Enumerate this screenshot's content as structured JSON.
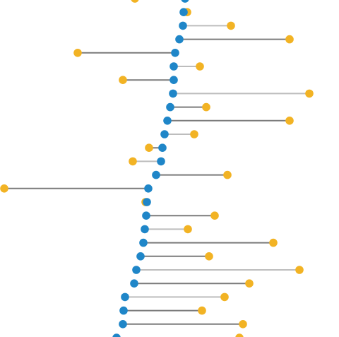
{
  "chart_data": {
    "type": "dumbbell",
    "title": "",
    "xlabel": "",
    "ylabel": "",
    "grid": false,
    "legend": "none",
    "xlim": [
      0,
      480
    ],
    "colors": {
      "start": "#1f86c8",
      "end": "#f2b324",
      "line_dark": "#7b7b7b",
      "line_light": "#bdbdbd"
    },
    "rows": [
      {
        "start": 262,
        "end": 191,
        "tone": "dark"
      },
      {
        "start": 260,
        "end": 265,
        "tone": "light"
      },
      {
        "start": 259,
        "end": 327,
        "tone": "light"
      },
      {
        "start": 254,
        "end": 410,
        "tone": "dark"
      },
      {
        "start": 248,
        "end": 110,
        "tone": "dark"
      },
      {
        "start": 246,
        "end": 283,
        "tone": "light"
      },
      {
        "start": 246,
        "end": 174,
        "tone": "dark"
      },
      {
        "start": 245,
        "end": 438,
        "tone": "light"
      },
      {
        "start": 241,
        "end": 292,
        "tone": "dark"
      },
      {
        "start": 237,
        "end": 410,
        "tone": "dark"
      },
      {
        "start": 233,
        "end": 275,
        "tone": "light"
      },
      {
        "start": 230,
        "end": 211,
        "tone": "dark"
      },
      {
        "start": 228,
        "end": 188,
        "tone": "light"
      },
      {
        "start": 221,
        "end": 322,
        "tone": "dark"
      },
      {
        "start": 210,
        "end": 6,
        "tone": "dark"
      },
      {
        "start": 208,
        "end": 206,
        "tone": "dark"
      },
      {
        "start": 207,
        "end": 304,
        "tone": "dark"
      },
      {
        "start": 205,
        "end": 266,
        "tone": "light"
      },
      {
        "start": 203,
        "end": 387,
        "tone": "dark"
      },
      {
        "start": 199,
        "end": 296,
        "tone": "dark"
      },
      {
        "start": 193,
        "end": 424,
        "tone": "light"
      },
      {
        "start": 190,
        "end": 353,
        "tone": "dark"
      },
      {
        "start": 177,
        "end": 318,
        "tone": "light"
      },
      {
        "start": 175,
        "end": 286,
        "tone": "dark"
      },
      {
        "start": 174,
        "end": 344,
        "tone": "dark"
      },
      {
        "start": 165,
        "end": 339,
        "tone": "dark"
      }
    ]
  }
}
